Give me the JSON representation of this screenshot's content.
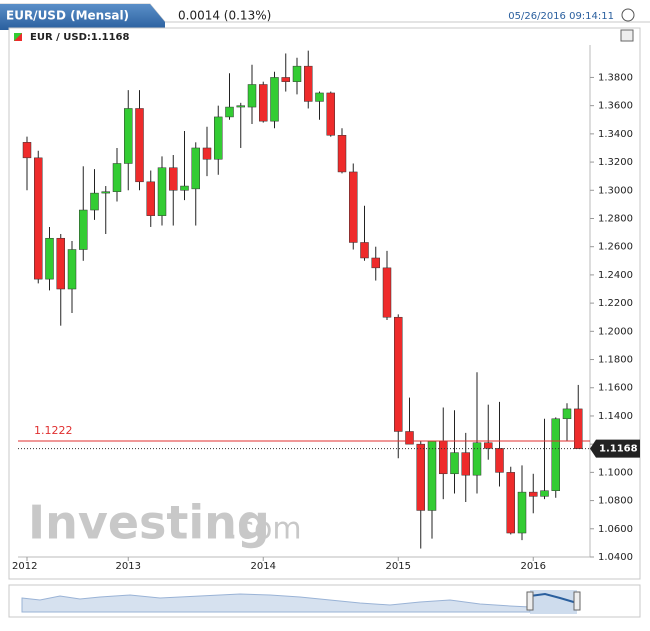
{
  "header": {
    "title": "EUR/USD (Mensal)",
    "change": "0.0014 (0.13%)",
    "timestamp": "05/26/2016 09:14:11"
  },
  "chart_data": {
    "type": "candlestick",
    "title": "EUR / USD:1.1168",
    "categories": [
      "2012",
      null,
      null,
      null,
      null,
      null,
      null,
      null,
      null,
      "2013",
      null,
      null,
      null,
      null,
      null,
      null,
      null,
      null,
      null,
      null,
      null,
      "2014",
      null,
      null,
      null,
      null,
      null,
      null,
      null,
      null,
      null,
      null,
      null,
      "2015",
      null,
      null,
      null,
      null,
      null,
      null,
      null,
      null,
      null,
      null,
      null,
      "2016",
      null,
      null,
      null,
      null
    ],
    "open": [
      1.334,
      1.323,
      1.237,
      1.266,
      1.23,
      1.258,
      1.286,
      1.298,
      1.299,
      1.319,
      1.358,
      1.306,
      1.282,
      1.316,
      1.3,
      1.301,
      1.33,
      1.322,
      1.352,
      1.359,
      1.359,
      1.375,
      1.349,
      1.38,
      1.377,
      1.388,
      1.363,
      1.369,
      1.339,
      1.313,
      1.263,
      1.252,
      1.245,
      1.21,
      1.129,
      1.12,
      1.073,
      1.122,
      1.099,
      1.114,
      1.098,
      1.121,
      1.117,
      1.1,
      1.057,
      1.086,
      1.083,
      1.087,
      1.138,
      1.145
    ],
    "high": [
      1.338,
      1.328,
      1.274,
      1.269,
      1.264,
      1.317,
      1.315,
      1.303,
      1.33,
      1.371,
      1.371,
      1.314,
      1.324,
      1.325,
      1.342,
      1.334,
      1.345,
      1.36,
      1.383,
      1.362,
      1.389,
      1.377,
      1.384,
      1.397,
      1.394,
      1.399,
      1.37,
      1.37,
      1.344,
      1.319,
      1.289,
      1.26,
      1.257,
      1.212,
      1.153,
      1.122,
      1.122,
      1.146,
      1.144,
      1.128,
      1.171,
      1.148,
      1.15,
      1.104,
      1.105,
      1.099,
      1.138,
      1.139,
      1.149,
      1.162
    ],
    "low": [
      1.3,
      1.234,
      1.229,
      1.204,
      1.213,
      1.25,
      1.279,
      1.269,
      1.292,
      1.3,
      1.3,
      1.274,
      1.275,
      1.275,
      1.293,
      1.275,
      1.31,
      1.311,
      1.35,
      1.33,
      1.347,
      1.348,
      1.344,
      1.37,
      1.368,
      1.358,
      1.35,
      1.338,
      1.312,
      1.258,
      1.25,
      1.236,
      1.208,
      1.11,
      1.12,
      1.046,
      1.053,
      1.081,
      1.085,
      1.079,
      1.085,
      1.109,
      1.09,
      1.056,
      1.052,
      1.071,
      1.081,
      1.082,
      1.122,
      1.117
    ],
    "close": [
      1.323,
      1.237,
      1.266,
      1.23,
      1.258,
      1.286,
      1.298,
      1.299,
      1.319,
      1.358,
      1.306,
      1.282,
      1.316,
      1.3,
      1.303,
      1.33,
      1.322,
      1.352,
      1.359,
      1.36,
      1.375,
      1.349,
      1.38,
      1.377,
      1.388,
      1.363,
      1.369,
      1.339,
      1.313,
      1.263,
      1.252,
      1.245,
      1.21,
      1.129,
      1.12,
      1.073,
      1.122,
      1.099,
      1.114,
      1.098,
      1.121,
      1.117,
      1.1,
      1.057,
      1.086,
      1.083,
      1.087,
      1.138,
      1.145,
      1.1168
    ],
    "up_color": "#33cc33",
    "down_color": "#ee2b2b",
    "ylim": [
      1.04,
      1.403
    ],
    "yticks": [
      {
        "value": 1.04,
        "label": "1.0400"
      },
      {
        "value": 1.06,
        "label": "1.0600"
      },
      {
        "value": 1.08,
        "label": "1.0800"
      },
      {
        "value": 1.1,
        "label": "1.1000"
      },
      {
        "value": 1.12,
        "label": "1.1200"
      },
      {
        "value": 1.14,
        "label": "1.1400"
      },
      {
        "value": 1.16,
        "label": "1.1600"
      },
      {
        "value": 1.18,
        "label": "1.1800"
      },
      {
        "value": 1.2,
        "label": "1.2000"
      },
      {
        "value": 1.22,
        "label": "1.2200"
      },
      {
        "value": 1.24,
        "label": "1.2400"
      },
      {
        "value": 1.26,
        "label": "1.2600"
      },
      {
        "value": 1.28,
        "label": "1.2800"
      },
      {
        "value": 1.3,
        "label": "1.3000"
      },
      {
        "value": 1.32,
        "label": "1.3200"
      },
      {
        "value": 1.34,
        "label": "1.3400"
      },
      {
        "value": 1.36,
        "label": "1.3600"
      },
      {
        "value": 1.38,
        "label": "1.3800"
      }
    ],
    "alert_line": 1.1222,
    "last_price": 1.1168,
    "watermark": [
      "Investing",
      ".com"
    ]
  }
}
